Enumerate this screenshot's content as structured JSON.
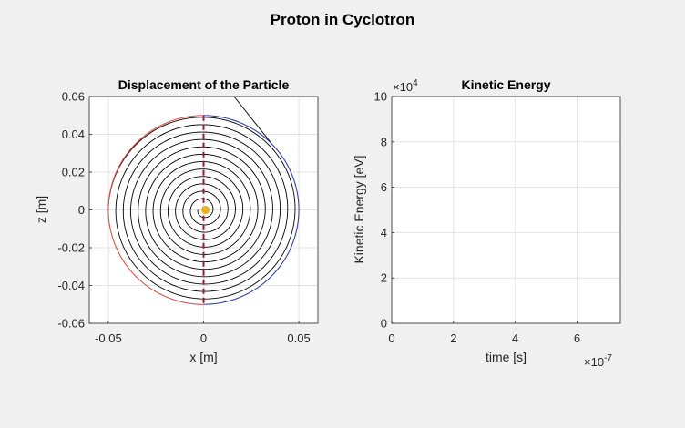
{
  "figure": {
    "suptitle": "Proton in Cyclotron"
  },
  "colors": {
    "figure_bg": "#f0f0f0",
    "axes_bg": "#ffffff",
    "grid": "#e3e3e3",
    "axis": "#262626",
    "spiral": "#000000",
    "left_dee": "#d9534a",
    "right_dee": "#2f3fb0",
    "gap_line": "#a2142f",
    "particle": "#edb120",
    "energy_trace": "#0072bd"
  },
  "chart_data": [
    {
      "type": "line",
      "title": "Displacement of the Particle",
      "xlabel": "x [m]",
      "ylabel": "z [m]",
      "xlim": [
        -0.06,
        0.06
      ],
      "ylim": [
        -0.06,
        0.06
      ],
      "xticks": [
        -0.05,
        0,
        0.05
      ],
      "xticklabels": [
        "-0.05",
        "0",
        "0.05"
      ],
      "yticks": [
        0.06,
        0.04,
        0.02,
        0,
        -0.02,
        -0.04,
        -0.06
      ],
      "yticklabels": [
        "0.06",
        "0.04",
        "0.02",
        "0",
        "-0.02",
        "-0.04",
        "-0.06"
      ],
      "grid": true,
      "spiral": {
        "start_radius": 0.003,
        "end_radius": 0.05,
        "turns": 12,
        "exit_line": {
          "x": [
            0.016,
            0.035
          ],
          "z": [
            0.06,
            0.036
          ]
        }
      },
      "dees": [
        {
          "name": "left dee",
          "side": "left",
          "radius": 0.05
        },
        {
          "name": "right dee",
          "side": "right",
          "radius": 0.05
        }
      ],
      "gap": {
        "x": 0,
        "z": [
          -0.05,
          0.05
        ]
      },
      "particle": {
        "x": 0.001,
        "z": 0
      }
    },
    {
      "type": "line",
      "title": "Kinetic Energy",
      "xlabel": "time [s]",
      "ylabel": "Kinetic Energy [eV]",
      "xlim": [
        0,
        7.4e-07
      ],
      "ylim": [
        0,
        100000
      ],
      "xticks": [
        0,
        2,
        4,
        6
      ],
      "xticklabels": [
        "0",
        "2",
        "4",
        "6"
      ],
      "x_multiplier": "×10",
      "x_exponent": "-7",
      "yticks": [
        0,
        2,
        4,
        6,
        8,
        10
      ],
      "yticklabels": [
        "0",
        "2",
        "4",
        "6",
        "8",
        "10"
      ],
      "y_multiplier": "×10",
      "y_exponent": "4",
      "grid": true,
      "series": [
        {
          "x": [
            0,
            1e-09
          ],
          "y": [
            0,
            0
          ]
        }
      ]
    }
  ]
}
